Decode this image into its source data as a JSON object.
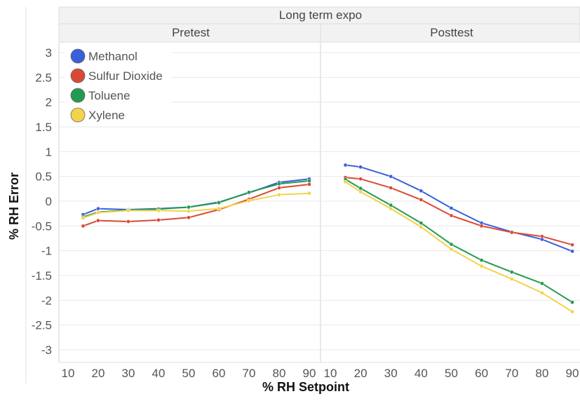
{
  "chart_data": {
    "type": "line",
    "title": "Long term expo",
    "xlabel": "% RH Setpoint",
    "ylabel": "% RH Error",
    "ylim": [
      -3.25,
      3.25
    ],
    "yticks": [
      3,
      2.5,
      2,
      1.5,
      1,
      0.5,
      0,
      -0.5,
      -1,
      -1.5,
      -2,
      -2.5,
      -3
    ],
    "xticks": [
      10,
      20,
      30,
      40,
      50,
      60,
      70,
      80,
      90
    ],
    "grid": true,
    "legend_position": "top-left",
    "x": [
      15,
      20,
      30,
      40,
      50,
      60,
      70,
      80,
      90
    ],
    "panels": [
      {
        "name": "Pretest",
        "series": [
          {
            "name": "Methanol",
            "color": "#3b5fd9",
            "values": [
              -0.27,
              -0.15,
              -0.17,
              -0.15,
              -0.12,
              -0.02,
              0.17,
              0.38,
              0.45
            ]
          },
          {
            "name": "Sulfur Dioxide",
            "color": "#d94a34",
            "values": [
              -0.5,
              -0.39,
              -0.41,
              -0.38,
              -0.33,
              -0.17,
              0.04,
              0.27,
              0.34
            ]
          },
          {
            "name": "Toluene",
            "color": "#249a50",
            "values": [
              -0.32,
              -0.22,
              -0.18,
              -0.16,
              -0.12,
              -0.03,
              0.18,
              0.35,
              0.41
            ]
          },
          {
            "name": "Xylene",
            "color": "#f2d349",
            "values": [
              -0.34,
              -0.23,
              -0.19,
              -0.19,
              -0.2,
              -0.15,
              0.01,
              0.13,
              0.16
            ]
          }
        ]
      },
      {
        "name": "Posttest",
        "series": [
          {
            "name": "Methanol",
            "color": "#3b5fd9",
            "values": [
              0.73,
              0.69,
              0.5,
              0.21,
              -0.14,
              -0.44,
              -0.62,
              -0.77,
              -1.01
            ]
          },
          {
            "name": "Sulfur Dioxide",
            "color": "#d94a34",
            "values": [
              0.48,
              0.45,
              0.27,
              0.03,
              -0.29,
              -0.5,
              -0.63,
              -0.71,
              -0.88
            ]
          },
          {
            "name": "Toluene",
            "color": "#249a50",
            "values": [
              0.44,
              0.26,
              -0.08,
              -0.44,
              -0.87,
              -1.19,
              -1.43,
              -1.66,
              -2.04
            ]
          },
          {
            "name": "Xylene",
            "color": "#f2d349",
            "values": [
              0.39,
              0.19,
              -0.15,
              -0.52,
              -0.97,
              -1.31,
              -1.57,
              -1.85,
              -2.23
            ]
          }
        ]
      }
    ],
    "legend": [
      {
        "name": "Methanol",
        "color": "#3b5fd9"
      },
      {
        "name": "Sulfur Dioxide",
        "color": "#d94a34"
      },
      {
        "name": "Toluene",
        "color": "#249a50"
      },
      {
        "name": "Xylene",
        "color": "#f2d349"
      }
    ]
  }
}
